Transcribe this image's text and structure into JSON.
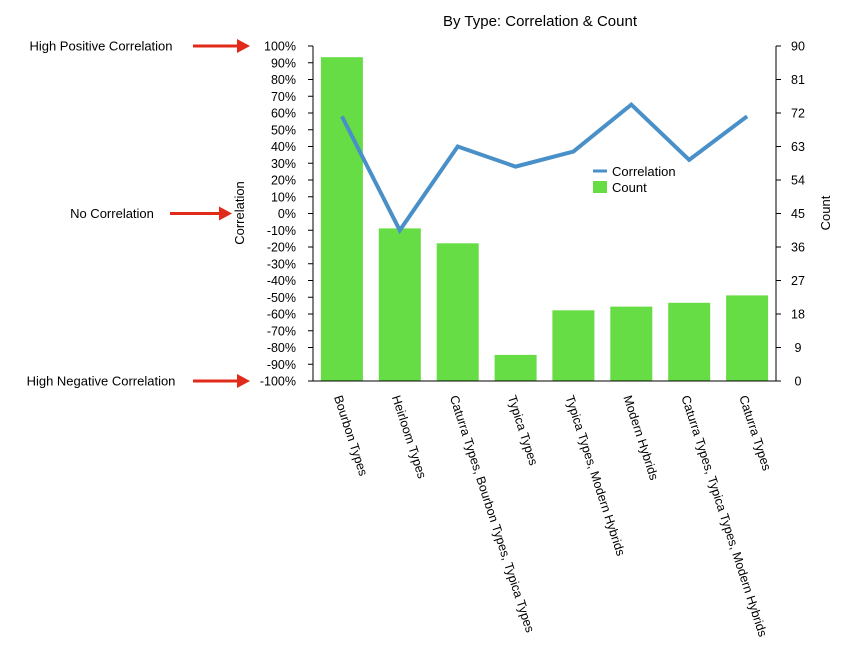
{
  "annotations": [
    {
      "text": "High Positive Correlation",
      "value": 100
    },
    {
      "text": "No Correlation",
      "value": 0
    },
    {
      "text": "High Negative Correlation",
      "value": -100
    }
  ],
  "colors": {
    "bar": "#66dd44",
    "line": "#4a90c8",
    "arrow": "#e02a1a",
    "axis": "#000000"
  },
  "chart_data": {
    "type": "bar+line",
    "title": "By Type: Correlation & Count",
    "xlabel": "",
    "ylabel_left": "Correlation",
    "ylabel_right": "Count",
    "categories": [
      "Bourbon Types",
      "Heirloom Types",
      "Caturra Types, Bourbon Types, Typica Types",
      "Typica Types",
      "Typica Types, Modern Hybrids",
      "Modern Hybrids",
      "Caturra Types, Typica Types, Modern Hybrids",
      "Caturra Types"
    ],
    "left_axis": {
      "ylim": [
        -100,
        100
      ],
      "ticks": [
        100,
        90,
        80,
        70,
        60,
        50,
        40,
        30,
        20,
        10,
        0,
        -10,
        -20,
        -30,
        -40,
        -50,
        -60,
        -70,
        -80,
        -90,
        -100
      ],
      "tick_labels": [
        "100%",
        "90%",
        "80%",
        "70%",
        "60%",
        "50%",
        "40%",
        "30%",
        "20%",
        "10%",
        "0%",
        "-10%",
        "-20%",
        "-30%",
        "-40%",
        "-50%",
        "-60%",
        "-70%",
        "-80%",
        "-90%",
        "-100%"
      ]
    },
    "right_axis": {
      "ylim": [
        0,
        90
      ],
      "ticks": [
        90,
        81,
        72,
        63,
        54,
        45,
        36,
        27,
        18,
        9,
        0
      ],
      "tick_labels": [
        "90",
        "81",
        "72",
        "63",
        "54",
        "45",
        "36",
        "27",
        "18",
        "9",
        "0"
      ]
    },
    "series": [
      {
        "name": "Count",
        "type": "bar",
        "axis": "right",
        "values": [
          87,
          41,
          37,
          7,
          19,
          20,
          21,
          23
        ]
      },
      {
        "name": "Correlation",
        "type": "line",
        "axis": "left",
        "values": [
          58,
          -10,
          40,
          28,
          37,
          65,
          32,
          58
        ]
      }
    ],
    "legend_position": "center-right",
    "grid": false
  }
}
